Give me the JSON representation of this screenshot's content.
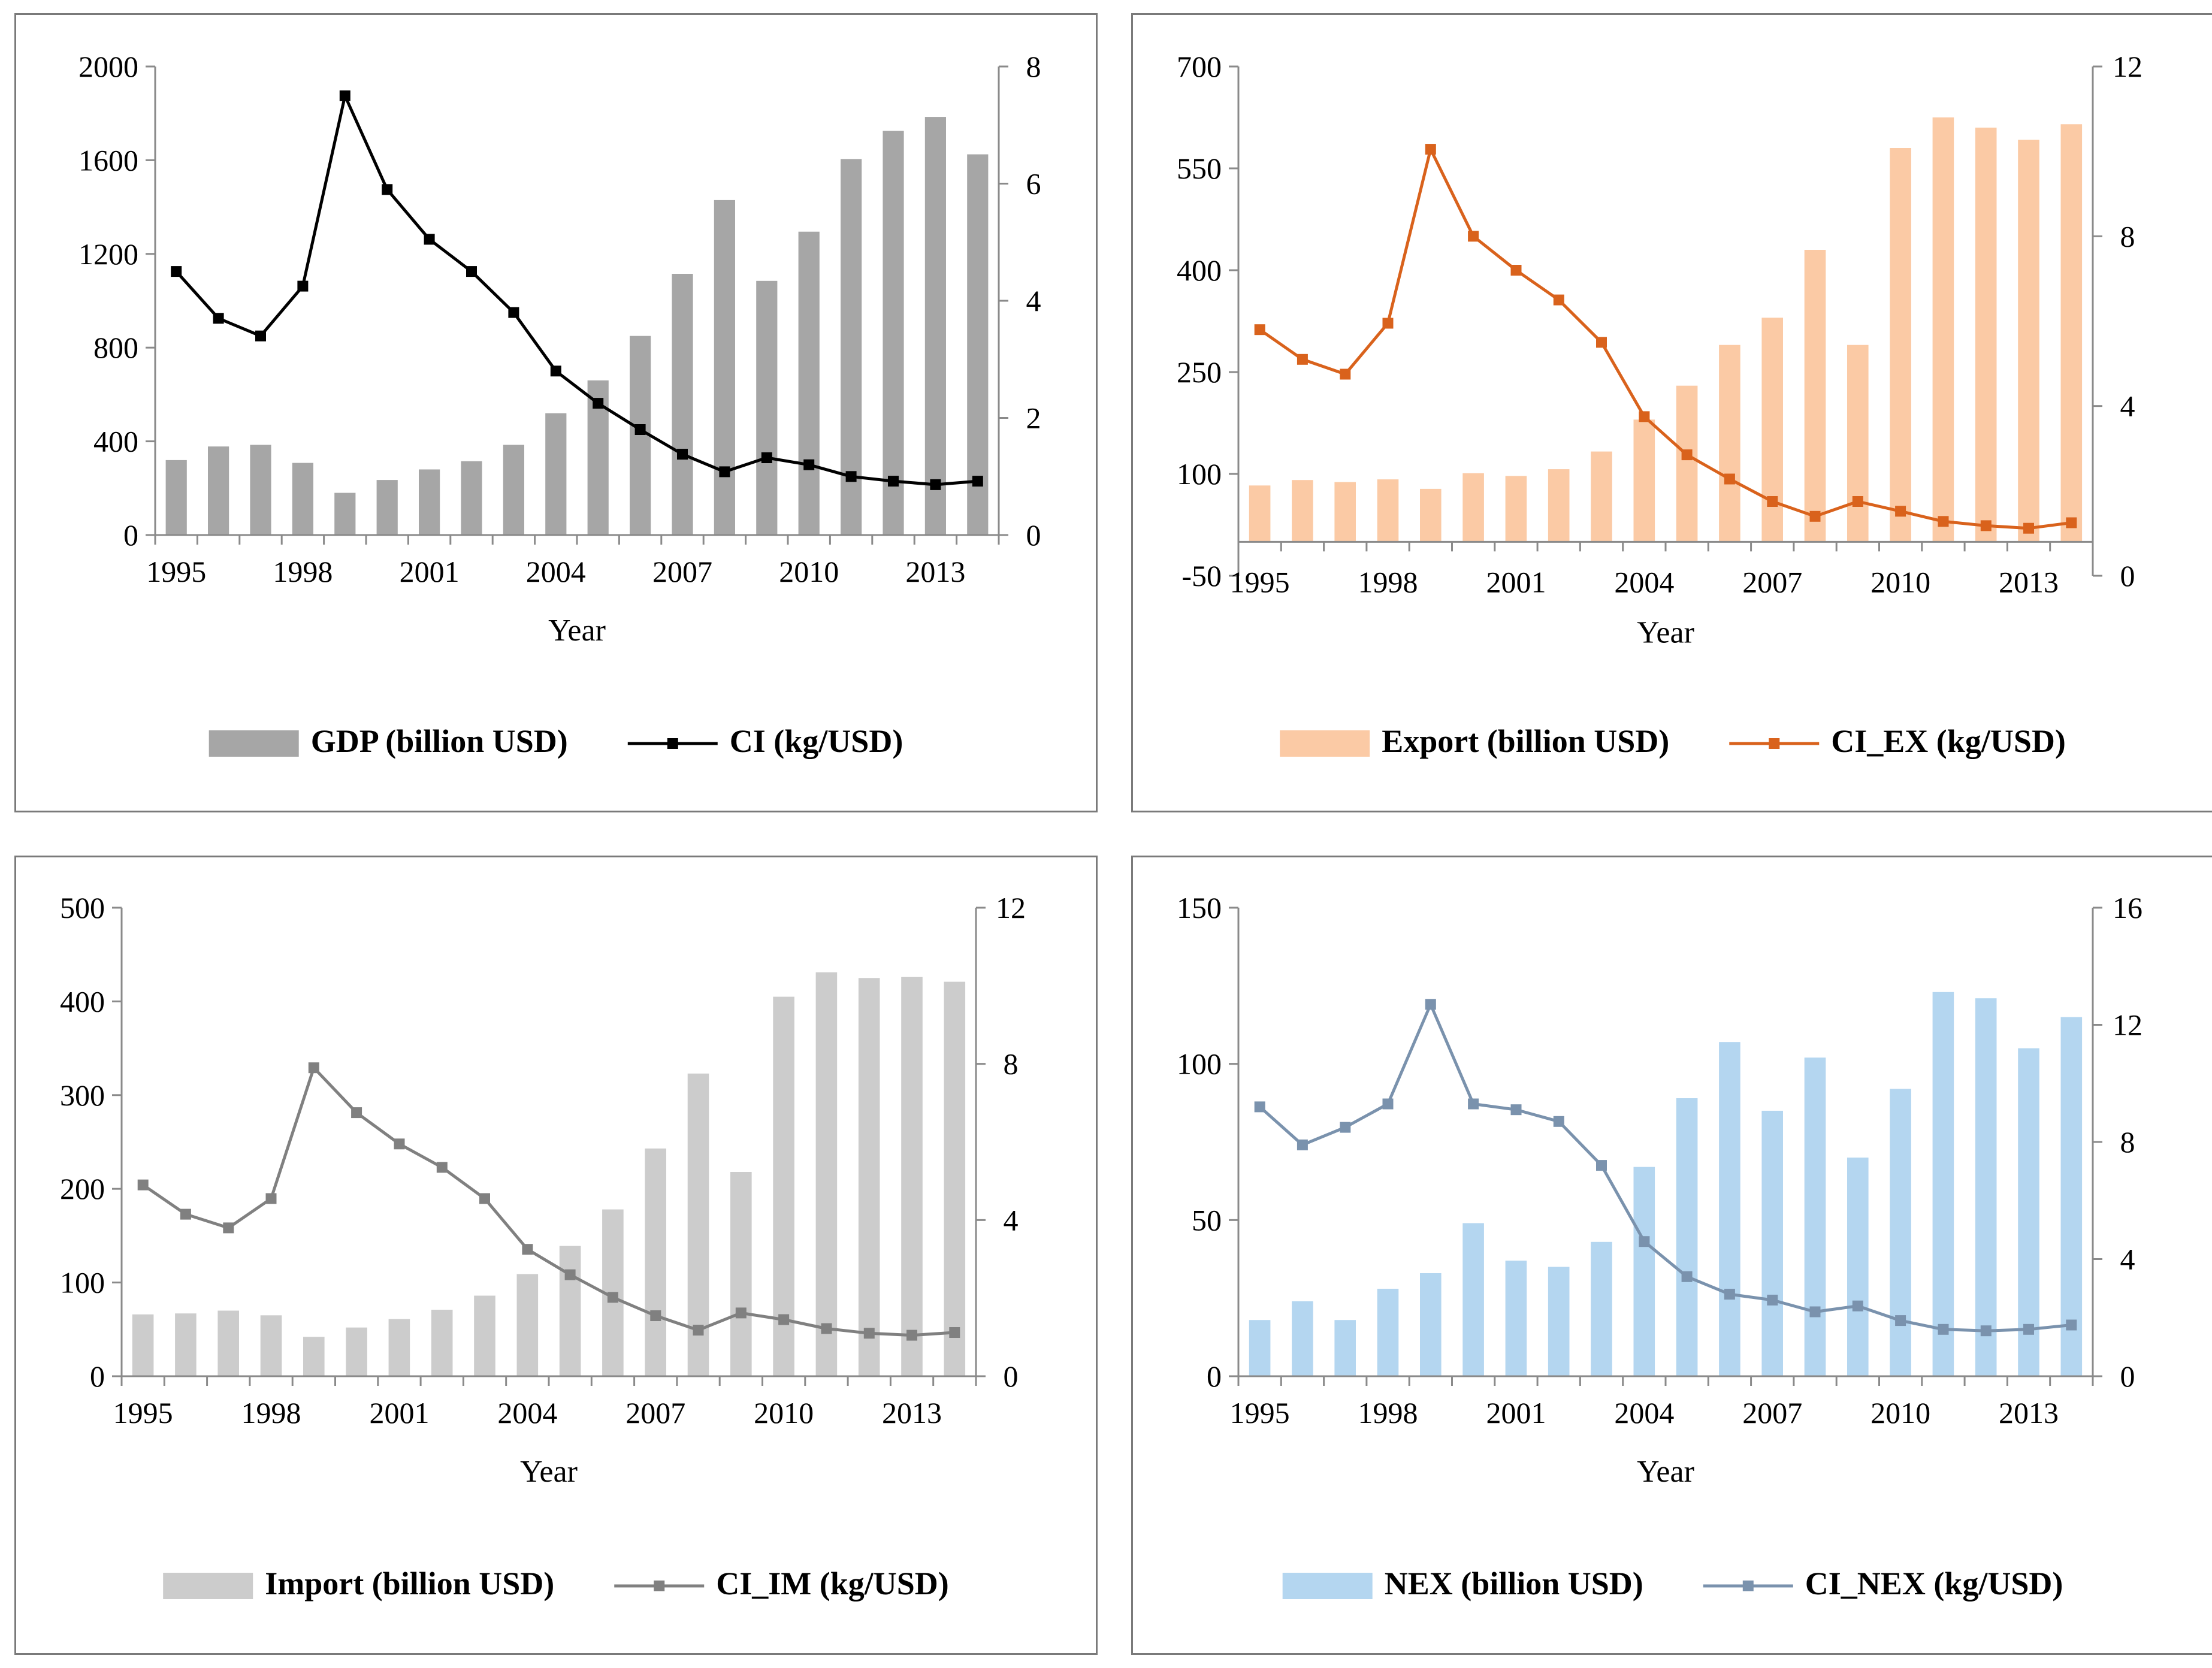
{
  "chart_data": [
    {
      "id": "gdp",
      "type": "bar+line",
      "xlabel": "Year",
      "x": [
        1995,
        1996,
        1997,
        1998,
        1999,
        2000,
        2001,
        2002,
        2003,
        2004,
        2005,
        2006,
        2007,
        2008,
        2009,
        2010,
        2011,
        2012,
        2013,
        2014
      ],
      "x_tick_labels": [
        "1995",
        "1998",
        "2001",
        "2004",
        "2007",
        "2010",
        "2013"
      ],
      "y_left": {
        "min": 0,
        "max": 2000,
        "ticks": [
          0,
          400,
          800,
          1200,
          1600,
          2000
        ]
      },
      "y_right": {
        "min": 0,
        "max": 8,
        "ticks": [
          0,
          2,
          4,
          6,
          8
        ]
      },
      "series": [
        {
          "name": "GDP (billion USD)",
          "kind": "bar",
          "axis": "left",
          "color": "#a6a6a6",
          "values": [
            320,
            378,
            385,
            308,
            180,
            235,
            280,
            315,
            385,
            520,
            660,
            850,
            1115,
            1430,
            1085,
            1295,
            1605,
            1725,
            1785,
            1625
          ]
        },
        {
          "name": "CI (kg/USD)",
          "kind": "line",
          "axis": "right",
          "color": "#000000",
          "values": [
            4.5,
            3.7,
            3.4,
            4.25,
            7.5,
            5.9,
            5.05,
            4.5,
            3.8,
            2.8,
            2.25,
            1.8,
            1.38,
            1.08,
            1.32,
            1.2,
            1.0,
            0.92,
            0.86,
            0.92
          ]
        }
      ]
    },
    {
      "id": "export",
      "type": "bar+line",
      "xlabel": "Year",
      "x": [
        1995,
        1996,
        1997,
        1998,
        1999,
        2000,
        2001,
        2002,
        2003,
        2004,
        2005,
        2006,
        2007,
        2008,
        2009,
        2010,
        2011,
        2012,
        2013,
        2014
      ],
      "x_tick_labels": [
        "1995",
        "1998",
        "2001",
        "2004",
        "2007",
        "2010",
        "2013"
      ],
      "y_left": {
        "min": -50,
        "max": 700,
        "ticks": [
          -50,
          100,
          250,
          400,
          550,
          700
        ]
      },
      "y_right": {
        "min": 0,
        "max": 12,
        "ticks": [
          0,
          4,
          8,
          12
        ]
      },
      "series": [
        {
          "name": "Export (billion USD)",
          "kind": "bar",
          "axis": "left",
          "color": "#fbcaa5",
          "values": [
            83,
            91,
            88,
            92,
            78,
            101,
            97,
            107,
            133,
            180,
            230,
            290,
            330,
            430,
            290,
            580,
            625,
            610,
            592,
            615
          ]
        },
        {
          "name": "CI_EX (kg/USD)",
          "kind": "line",
          "axis": "right",
          "color": "#d9621c",
          "values": [
            5.8,
            5.1,
            4.75,
            5.95,
            10.05,
            8.0,
            7.2,
            6.5,
            5.5,
            3.75,
            2.85,
            2.28,
            1.75,
            1.4,
            1.75,
            1.52,
            1.28,
            1.18,
            1.12,
            1.25
          ]
        }
      ]
    },
    {
      "id": "import",
      "type": "bar+line",
      "xlabel": "Year",
      "x": [
        1995,
        1996,
        1997,
        1998,
        1999,
        2000,
        2001,
        2002,
        2003,
        2004,
        2005,
        2006,
        2007,
        2008,
        2009,
        2010,
        2011,
        2012,
        2013,
        2014
      ],
      "x_tick_labels": [
        "1995",
        "1998",
        "2001",
        "2004",
        "2007",
        "2010",
        "2013"
      ],
      "y_left": {
        "min": 0,
        "max": 500,
        "ticks": [
          0,
          100,
          200,
          300,
          400,
          500
        ]
      },
      "y_right": {
        "min": 0,
        "max": 12,
        "ticks": [
          0,
          4,
          8,
          12
        ]
      },
      "series": [
        {
          "name": "Import (billion USD)",
          "kind": "bar",
          "axis": "left",
          "color": "#cccccc",
          "values": [
            66,
            67,
            70,
            65,
            42,
            52,
            61,
            71,
            86,
            109,
            139,
            178,
            243,
            323,
            218,
            405,
            431,
            425,
            426,
            421
          ]
        },
        {
          "name": "CI_IM (kg/USD)",
          "kind": "line",
          "axis": "right",
          "color": "#808080",
          "values": [
            4.9,
            4.15,
            3.8,
            4.55,
            7.9,
            6.75,
            5.95,
            5.35,
            4.55,
            3.25,
            2.6,
            2.02,
            1.55,
            1.18,
            1.62,
            1.45,
            1.22,
            1.1,
            1.05,
            1.12
          ]
        }
      ]
    },
    {
      "id": "nex",
      "type": "bar+line",
      "xlabel": "Year",
      "x": [
        1995,
        1996,
        1997,
        1998,
        1999,
        2000,
        2001,
        2002,
        2003,
        2004,
        2005,
        2006,
        2007,
        2008,
        2009,
        2010,
        2011,
        2012,
        2013,
        2014
      ],
      "x_tick_labels": [
        "1995",
        "1998",
        "2001",
        "2004",
        "2007",
        "2010",
        "2013"
      ],
      "y_left": {
        "min": 0,
        "max": 150,
        "ticks": [
          0,
          50,
          100,
          150
        ]
      },
      "y_right": {
        "min": 0,
        "max": 16,
        "ticks": [
          0,
          4,
          8,
          12,
          16
        ]
      },
      "series": [
        {
          "name": "NEX (billion USD)",
          "kind": "bar",
          "axis": "left",
          "color": "#b4d6f0",
          "values": [
            18,
            24,
            18,
            28,
            33,
            49,
            37,
            35,
            43,
            67,
            89,
            107,
            85,
            102,
            70,
            92,
            123,
            121,
            105,
            115
          ]
        },
        {
          "name": "CI_NEX (kg/USD)",
          "kind": "line",
          "axis": "right",
          "color": "#7a92ad",
          "values": [
            9.2,
            7.9,
            8.5,
            9.3,
            12.7,
            9.3,
            9.1,
            8.7,
            7.2,
            4.6,
            3.4,
            2.8,
            2.6,
            2.2,
            2.4,
            1.9,
            1.6,
            1.55,
            1.6,
            1.75
          ]
        }
      ]
    }
  ]
}
